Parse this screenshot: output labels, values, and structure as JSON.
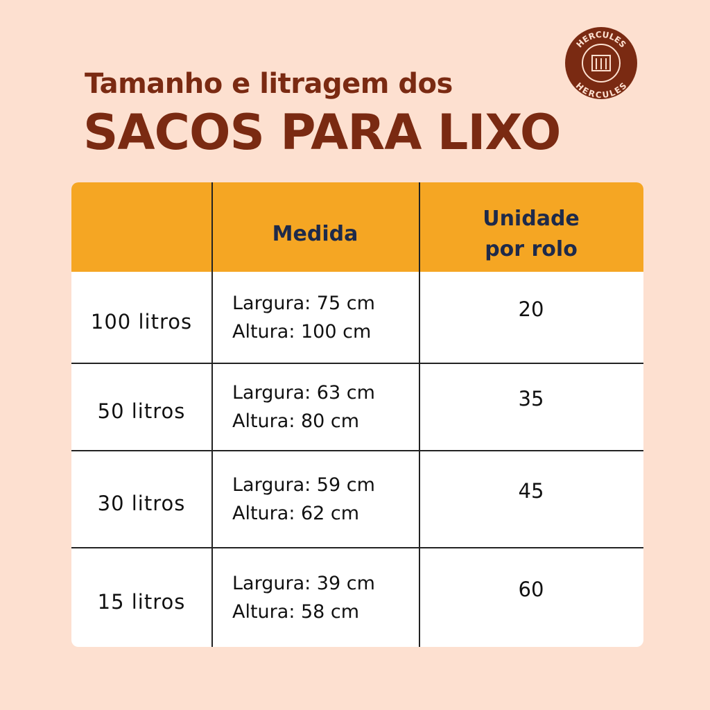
{
  "header": {
    "subtitle": "Tamanho e litragem dos",
    "title": "SACOS PARA LIXO"
  },
  "logo": {
    "top": "HERCULES",
    "bottom": "HERCULES"
  },
  "table": {
    "headers": {
      "medida": "Medida",
      "unidade": [
        "Unidade",
        "por rolo"
      ]
    },
    "rows": [
      {
        "size": "100 litros",
        "medida": [
          "Largura: 75 cm",
          "Altura: 100 cm"
        ],
        "unidades": 20
      },
      {
        "size": "50 litros",
        "medida": [
          "Largura: 63 cm",
          "Altura: 80 cm"
        ],
        "unidades": 35
      },
      {
        "size": "30 litros",
        "medida": [
          "Largura: 59 cm",
          "Altura: 62 cm"
        ],
        "unidades": 45
      },
      {
        "size": "15 litros",
        "medida": [
          "Largura: 39 cm",
          "Altura: 58 cm"
        ],
        "unidades": 60
      }
    ]
  }
}
